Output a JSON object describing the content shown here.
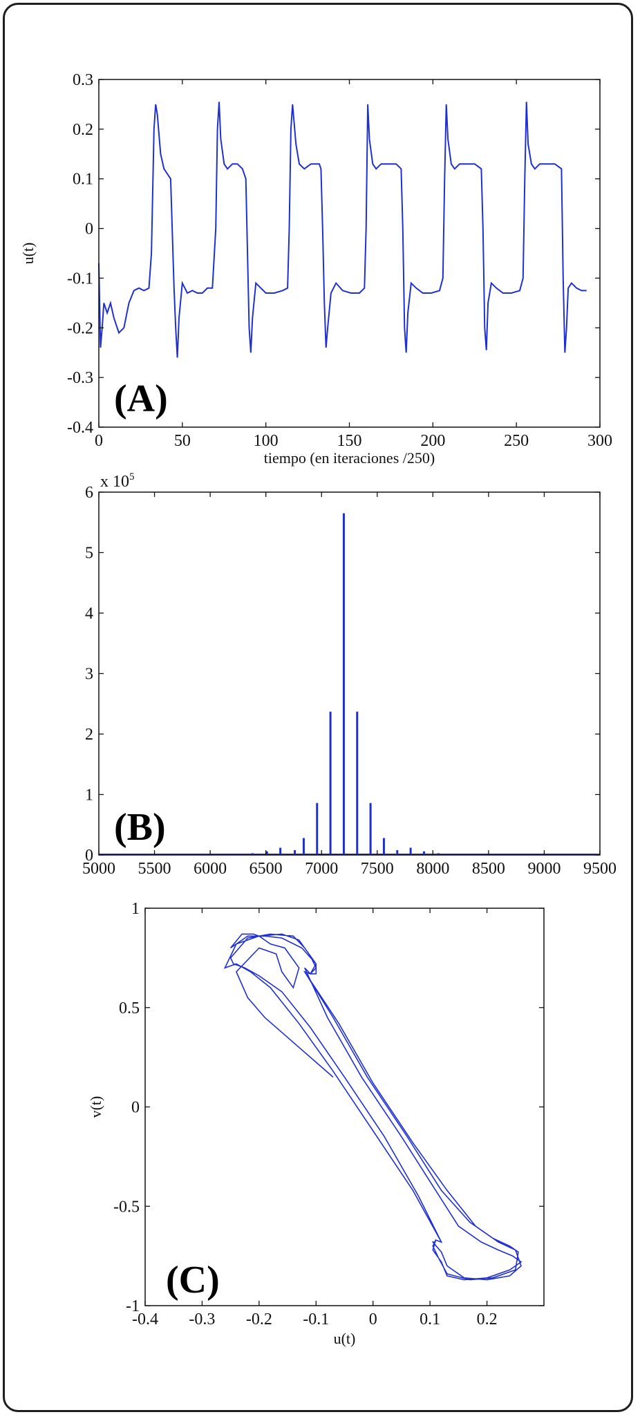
{
  "chart_data": [
    {
      "type": "line",
      "panel_label": "(A)",
      "xlabel": "tiempo (en iteraciones /250)",
      "ylabel": "u(t)",
      "xlim": [
        0,
        300
      ],
      "ylim": [
        -0.4,
        0.3
      ],
      "xticks": [
        "0",
        "50",
        "100",
        "150",
        "200",
        "250",
        "300"
      ],
      "yticks": [
        "0.3",
        "0.2",
        "0.1",
        "0",
        "-0.1",
        "-0.2",
        "-0.3",
        "-0.4"
      ],
      "color": "#1f2fd0",
      "series": [
        {
          "x": [
            0,
            1,
            2,
            3,
            5,
            7,
            9,
            12,
            15,
            18,
            21,
            24,
            27,
            30,
            31.5,
            33,
            34,
            35,
            37,
            39,
            41,
            43,
            45,
            46,
            47,
            48,
            50,
            53,
            56,
            59,
            62,
            65,
            68,
            70,
            71,
            72,
            73,
            75,
            77,
            80,
            83,
            86,
            88,
            89,
            90,
            91,
            92,
            94,
            97,
            100,
            105,
            110,
            113,
            114,
            115,
            116,
            118,
            120,
            123,
            127,
            132,
            133,
            134,
            135,
            136,
            137,
            139,
            142,
            146,
            151,
            156,
            159,
            160,
            161,
            162,
            164,
            166,
            169,
            173,
            178,
            181,
            182,
            183,
            184,
            185,
            187,
            190,
            194,
            199,
            204,
            206,
            207,
            208,
            209,
            211,
            213,
            216,
            220,
            225,
            229,
            230,
            231,
            232,
            233,
            235,
            238,
            242,
            247,
            252,
            254,
            255,
            256,
            257,
            259,
            261,
            264,
            268,
            273,
            277,
            278,
            279,
            280,
            281,
            283,
            286,
            289,
            292
          ],
          "y": [
            -0.07,
            -0.24,
            -0.2,
            -0.15,
            -0.17,
            -0.15,
            -0.18,
            -0.21,
            -0.2,
            -0.15,
            -0.125,
            -0.12,
            -0.125,
            -0.12,
            -0.05,
            0.2,
            0.25,
            0.23,
            0.15,
            0.12,
            0.11,
            0.1,
            -0.12,
            -0.2,
            -0.26,
            -0.18,
            -0.11,
            -0.13,
            -0.125,
            -0.13,
            -0.13,
            -0.12,
            -0.12,
            0.0,
            0.2,
            0.255,
            0.18,
            0.13,
            0.12,
            0.13,
            0.13,
            0.12,
            0.1,
            -0.05,
            -0.2,
            -0.25,
            -0.18,
            -0.11,
            -0.12,
            -0.13,
            -0.13,
            -0.125,
            -0.12,
            0.0,
            0.2,
            0.25,
            0.17,
            0.13,
            0.12,
            0.13,
            0.13,
            0.12,
            0.0,
            -0.15,
            -0.24,
            -0.2,
            -0.13,
            -0.11,
            -0.125,
            -0.13,
            -0.13,
            -0.12,
            0.0,
            0.25,
            0.18,
            0.13,
            0.12,
            0.13,
            0.13,
            0.13,
            0.12,
            0.0,
            -0.2,
            -0.25,
            -0.17,
            -0.11,
            -0.12,
            -0.13,
            -0.13,
            -0.125,
            -0.1,
            0.1,
            0.25,
            0.18,
            0.13,
            0.12,
            0.13,
            0.13,
            0.13,
            0.12,
            0.0,
            -0.2,
            -0.245,
            -0.15,
            -0.11,
            -0.12,
            -0.13,
            -0.13,
            -0.125,
            -0.1,
            0.1,
            0.255,
            0.17,
            0.13,
            0.12,
            0.13,
            0.13,
            0.13,
            0.12,
            -0.1,
            -0.25,
            -0.2,
            -0.12,
            -0.11,
            -0.12,
            -0.125,
            -0.125
          ]
        }
      ]
    },
    {
      "type": "bar",
      "panel_label": "(B)",
      "multiplier": "x 10",
      "exponent": "5",
      "xlim": [
        5000,
        9500
      ],
      "ylim": [
        0,
        6
      ],
      "xticks": [
        "5000",
        "5500",
        "6000",
        "6500",
        "7000",
        "7500",
        "8000",
        "8500",
        "9000",
        "9500"
      ],
      "yticks": [
        "6",
        "5",
        "4",
        "3",
        "2",
        "1",
        "0"
      ],
      "color": "#1f2fd0",
      "x": [
        6100,
        6250,
        6380,
        6510,
        6630,
        6760,
        6840,
        6960,
        7080,
        7200,
        7320,
        7440,
        7560,
        7680,
        7800,
        7920,
        8050,
        8180
      ],
      "values": [
        0.01,
        0.02,
        0.03,
        0.06,
        0.12,
        0.08,
        0.28,
        0.86,
        2.37,
        5.65,
        2.37,
        0.86,
        0.28,
        0.08,
        0.12,
        0.06,
        0.03,
        0.02
      ]
    },
    {
      "type": "line",
      "panel_label": "(C)",
      "xlabel": "u(t)",
      "ylabel": "v(t)",
      "xlim": [
        -0.4,
        0.3
      ],
      "ylim": [
        -1,
        1
      ],
      "xticks": [
        "-0.4",
        "-0.3",
        "-0.2",
        "-0.1",
        "0",
        "0.1",
        "0.2"
      ],
      "yticks": [
        "1",
        "0.5",
        "0",
        "-0.5",
        "-1"
      ],
      "color": "#1f2fd0",
      "series": [
        {
          "x": [
            -0.07,
            -0.13,
            -0.19,
            -0.22,
            -0.24,
            -0.2,
            -0.17,
            -0.16,
            -0.14,
            -0.13,
            -0.155,
            -0.18,
            -0.2,
            -0.21,
            -0.23,
            -0.25,
            -0.22,
            -0.19,
            -0.16,
            -0.125,
            -0.1,
            -0.1,
            -0.11,
            -0.12,
            -0.08,
            -0.02,
            0.05,
            0.11,
            0.15,
            0.19,
            0.22,
            0.245,
            0.26,
            0.24,
            0.2,
            0.16,
            0.13,
            0.12,
            0.105,
            0.11,
            0.12,
            0.08,
            0.02,
            -0.05,
            -0.11,
            -0.16,
            -0.2,
            -0.225,
            -0.245,
            -0.25,
            -0.22,
            -0.18,
            -0.14,
            -0.12,
            -0.1,
            -0.11,
            -0.12,
            -0.07,
            -0.01,
            0.06,
            0.12,
            0.17,
            0.21,
            0.24,
            0.255,
            0.25,
            0.21,
            0.17,
            0.13,
            0.115,
            0.105,
            0.11,
            0.12,
            0.07,
            0.0,
            -0.07,
            -0.13,
            -0.18,
            -0.215,
            -0.24,
            -0.26,
            -0.24,
            -0.2,
            -0.16,
            -0.13,
            -0.11,
            -0.1,
            -0.11,
            -0.12,
            -0.06,
            0.0,
            0.07,
            0.13,
            0.18,
            0.22,
            0.25,
            0.26,
            0.24,
            0.2,
            0.16,
            0.13,
            0.12,
            0.105,
            0.11
          ],
          "y": [
            0.15,
            0.3,
            0.45,
            0.55,
            0.68,
            0.8,
            0.77,
            0.68,
            0.6,
            0.7,
            0.8,
            0.82,
            0.86,
            0.87,
            0.87,
            0.8,
            0.86,
            0.86,
            0.85,
            0.8,
            0.72,
            0.67,
            0.67,
            0.7,
            0.45,
            0.15,
            -0.15,
            -0.42,
            -0.6,
            -0.68,
            -0.72,
            -0.75,
            -0.78,
            -0.82,
            -0.86,
            -0.87,
            -0.85,
            -0.78,
            -0.72,
            -0.67,
            -0.68,
            -0.45,
            -0.15,
            0.15,
            0.4,
            0.58,
            0.66,
            0.7,
            0.72,
            0.75,
            0.85,
            0.87,
            0.86,
            0.8,
            0.72,
            0.67,
            0.68,
            0.45,
            0.15,
            -0.15,
            -0.42,
            -0.58,
            -0.66,
            -0.7,
            -0.73,
            -0.82,
            -0.86,
            -0.87,
            -0.84,
            -0.76,
            -0.7,
            -0.67,
            -0.68,
            -0.42,
            -0.12,
            0.18,
            0.42,
            0.6,
            0.68,
            0.72,
            0.7,
            0.82,
            0.86,
            0.87,
            0.84,
            0.76,
            0.7,
            0.67,
            0.68,
            0.42,
            0.12,
            -0.18,
            -0.42,
            -0.6,
            -0.68,
            -0.72,
            -0.8,
            -0.85,
            -0.87,
            -0.86,
            -0.8,
            -0.73,
            -0.68,
            -0.68
          ]
        }
      ]
    }
  ]
}
